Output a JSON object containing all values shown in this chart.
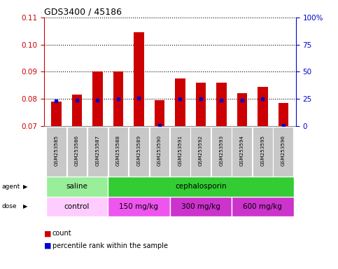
{
  "title": "GDS3400 / 45186",
  "samples": [
    "GSM253585",
    "GSM253586",
    "GSM253587",
    "GSM253588",
    "GSM253589",
    "GSM253590",
    "GSM253591",
    "GSM253592",
    "GSM253593",
    "GSM253594",
    "GSM253595",
    "GSM253596"
  ],
  "count_values": [
    0.079,
    0.0815,
    0.09,
    0.09,
    0.1045,
    0.0795,
    0.0875,
    0.086,
    0.086,
    0.082,
    0.0845,
    0.0785
  ],
  "percentile_values": [
    0.0793,
    0.0795,
    0.0795,
    0.08,
    0.0802,
    0.0702,
    0.08,
    0.08,
    0.0795,
    0.0795,
    0.08,
    0.0702
  ],
  "ylim_left": [
    0.07,
    0.11
  ],
  "ylim_right": [
    0,
    100
  ],
  "yticks_left": [
    0.07,
    0.08,
    0.09,
    0.1,
    0.11
  ],
  "yticks_right": [
    0,
    25,
    50,
    75,
    100
  ],
  "ytick_right_labels": [
    "0",
    "25",
    "50",
    "75",
    "100%"
  ],
  "bar_color": "#cc0000",
  "dot_color": "#0000cc",
  "ylabel_left_color": "#cc0000",
  "ylabel_right_color": "#0000cc",
  "agent_groups": [
    {
      "label": "saline",
      "start": 0,
      "end": 3,
      "color": "#99ee99"
    },
    {
      "label": "cephalosporin",
      "start": 3,
      "end": 12,
      "color": "#33cc33"
    }
  ],
  "dose_groups": [
    {
      "label": "control",
      "start": 0,
      "end": 3,
      "color": "#ffccff"
    },
    {
      "label": "150 mg/kg",
      "start": 3,
      "end": 6,
      "color": "#ee55ee"
    },
    {
      "label": "300 mg/kg",
      "start": 6,
      "end": 9,
      "color": "#cc33cc"
    },
    {
      "label": "600 mg/kg",
      "start": 9,
      "end": 12,
      "color": "#cc33cc"
    }
  ],
  "legend_items": [
    {
      "label": "count",
      "color": "#cc0000"
    },
    {
      "label": "percentile rank within the sample",
      "color": "#0000cc"
    }
  ],
  "bar_width": 0.5,
  "sample_box_color": "#c8c8c8",
  "sample_box_edge": "#aaaaaa"
}
